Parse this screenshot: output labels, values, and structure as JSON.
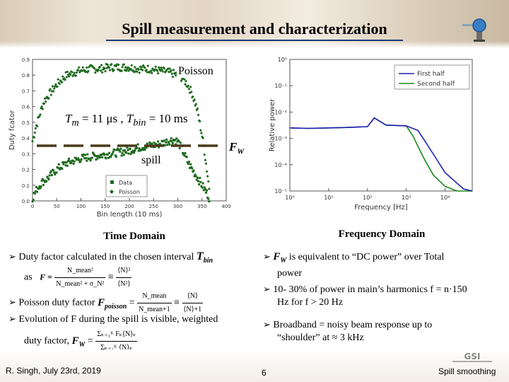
{
  "header": {
    "title": "Spill measurement and characterization"
  },
  "chart_data": [
    {
      "type": "scatter",
      "title": "",
      "xlabel": "Bin length (10 ms)",
      "ylabel": "Duty fcator",
      "xlim": [
        0,
        400
      ],
      "ylim": [
        0,
        0.9
      ],
      "x_ticks": [
        "0",
        "50",
        "100",
        "150",
        "200",
        "250",
        "300",
        "350",
        "400"
      ],
      "y_ticks": [
        "0.0",
        "0.1",
        "0.2",
        "0.3",
        "0.4",
        "0.5",
        "0.6",
        "0.7",
        "0.8",
        "0.9"
      ],
      "legend": {
        "placement": "bottom-left",
        "entries": [
          "Data",
          "Poisson"
        ]
      },
      "color": "#1e6a1e",
      "series": [
        {
          "name": "Poisson",
          "x": [
            0,
            5,
            10,
            15,
            20,
            25,
            30,
            40,
            50,
            60,
            70,
            80,
            90,
            100,
            120,
            140,
            160,
            180,
            200,
            220,
            240,
            260,
            280,
            300,
            310,
            320,
            330,
            340,
            345,
            350,
            355,
            360,
            365
          ],
          "y": [
            0.38,
            0.45,
            0.5,
            0.55,
            0.6,
            0.64,
            0.66,
            0.7,
            0.74,
            0.77,
            0.8,
            0.81,
            0.82,
            0.83,
            0.84,
            0.84,
            0.85,
            0.85,
            0.85,
            0.84,
            0.84,
            0.83,
            0.82,
            0.8,
            0.78,
            0.74,
            0.68,
            0.58,
            0.5,
            0.42,
            0.32,
            0.2,
            0.08
          ]
        },
        {
          "name": "Data",
          "x": [
            0,
            10,
            20,
            30,
            40,
            50,
            60,
            70,
            80,
            100,
            120,
            140,
            160,
            180,
            200,
            220,
            240,
            260,
            280,
            290,
            300,
            310,
            320,
            330,
            340,
            350,
            360,
            365
          ],
          "y": [
            0.02,
            0.08,
            0.12,
            0.14,
            0.17,
            0.2,
            0.22,
            0.24,
            0.25,
            0.27,
            0.28,
            0.29,
            0.3,
            0.31,
            0.32,
            0.34,
            0.35,
            0.36,
            0.38,
            0.39,
            0.38,
            0.32,
            0.25,
            0.2,
            0.15,
            0.1,
            0.05,
            0.02
          ]
        }
      ]
    },
    {
      "type": "line",
      "title": "",
      "xlabel": "Frequency [Hz]",
      "ylabel": "Relative power",
      "xscale": "log",
      "yscale": "log",
      "xlim": [
        1,
        50000
      ],
      "ylim": [
        1e-05,
        1
      ],
      "x_ticks": [
        "10⁰",
        "10¹",
        "10²",
        "10³",
        "10⁴"
      ],
      "y_ticks": [
        "10⁰",
        "10⁻¹",
        "10⁻²",
        "10⁻³",
        "10⁻⁴",
        "10⁻⁵"
      ],
      "legend": {
        "placement": "top-right",
        "entries": [
          "First half",
          "Second half"
        ]
      },
      "series": [
        {
          "name": "First half",
          "color": "#1f1fb4",
          "x": [
            1,
            3,
            10,
            30,
            100,
            150,
            300,
            1000,
            2000,
            3000,
            5000,
            10000,
            20000,
            30000,
            50000
          ],
          "y": [
            0.0025,
            0.0024,
            0.0025,
            0.0026,
            0.0028,
            0.006,
            0.0032,
            0.003,
            0.002,
            0.0008,
            0.00025,
            5e-05,
            2e-05,
            1.2e-05,
            1e-05
          ]
        },
        {
          "name": "Second half",
          "color": "#1a8a1a",
          "x": [
            1,
            3,
            10,
            30,
            100,
            150,
            300,
            1000,
            1500,
            2000,
            3000,
            5000,
            10000,
            20000,
            50000
          ],
          "y": [
            0.0025,
            0.0024,
            0.0025,
            0.0026,
            0.0028,
            0.006,
            0.0032,
            0.003,
            0.0012,
            0.0005,
            0.00015,
            4e-05,
            1.5e-05,
            1e-05,
            1e-05
          ]
        }
      ]
    }
  ],
  "overlays": {
    "poisson_label": "Poisson",
    "spill_label": "spill",
    "fw_label": "F",
    "fw_sub": "W",
    "tm_formula_left": "T",
    "tm_sub": "m",
    "tm_value": " = 11 μs ,",
    "tbin_formula_left": "T",
    "tbin_sub": "bin",
    "tbin_value": " = 10 ms"
  },
  "left_column": {
    "heading": "Time Domain",
    "b1_text": "Duty factor calculated in the chosen interval",
    "b1_sym": "T",
    "b1_sub": "bin",
    "b1_as": "as",
    "b1_F": "F =",
    "b1_num": "N_mean²",
    "b1_den": "N_mean² + σ_N²",
    "b1_eq": "≡",
    "b1_num2": "⟨N⟩²",
    "b1_den2": "⟨N²⟩",
    "b2_text": "Poisson duty factor",
    "b2_sym": "F",
    "b2_sub": "poisson",
    "b2_eq1": "=",
    "b2_num": "N_mean",
    "b2_den": "N_mean+1",
    "b2_eq2": "≡",
    "b2_num2": "⟨N⟩",
    "b2_den2": "⟨N⟩+1",
    "b3_text_1": "Evolution of F during the spill is visible, weighted",
    "b3_text_2": "duty factor,",
    "b3_sym": "F",
    "b3_sub": "W",
    "b3_eq": "=",
    "b3_num": "Σₖ₌₁ᴷ Fₖ⟨N⟩ₖ",
    "b3_den": "Σₖ₌₁ᴷ ⟨N⟩ₖ"
  },
  "right_column": {
    "heading": "Frequency Domain",
    "b1_sym": "F",
    "b1_sub": "W",
    "b1_text_1": " is equivalent to “DC power” over Total",
    "b1_text_2": "power",
    "b2_text_1": "10- 30% of power in main’s harmonics  f = n·150",
    "b2_text_2": "Hz for f > 20 Hz",
    "b3_text_1": "Broadband = noisy beam response up to",
    "b3_text_2": "“shoulder” at ≈ 3 kHz"
  },
  "footer": {
    "author": "R. Singh, July 23rd, 2019",
    "page": "6",
    "topic": "Spill smoothing",
    "logo": "GSI"
  }
}
